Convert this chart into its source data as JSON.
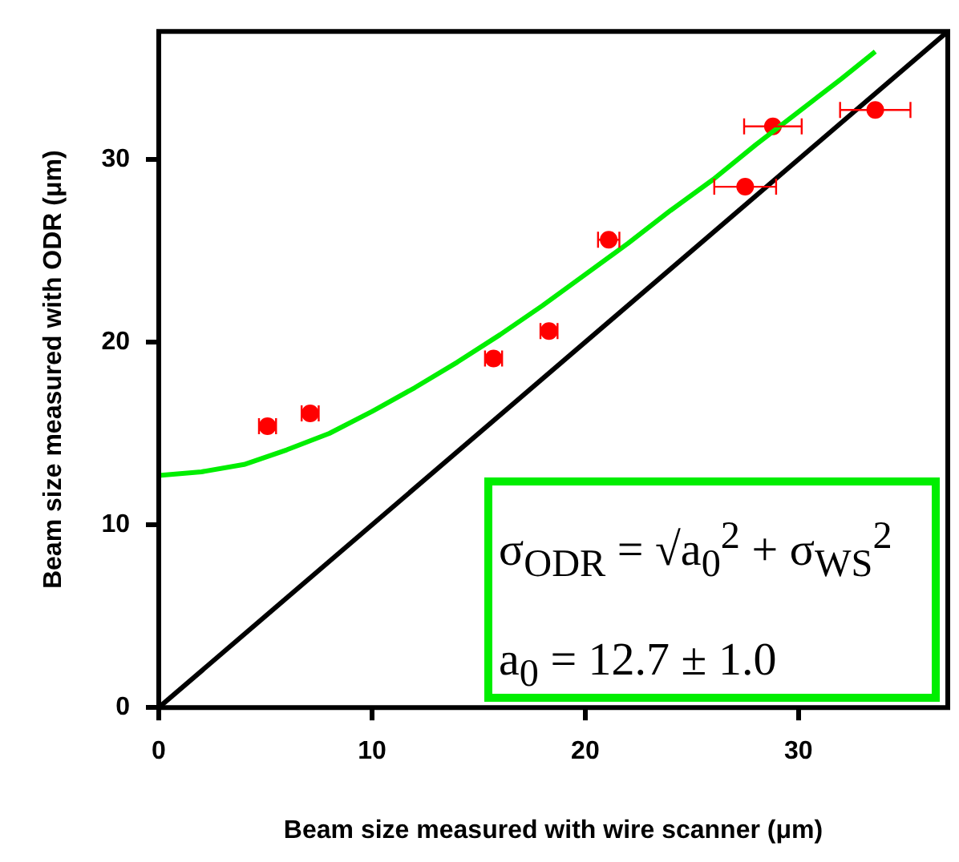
{
  "chart_data": {
    "type": "scatter",
    "xlabel": "Beam size measured with wire scanner (μm)",
    "ylabel": "Beam size measured with ODR (μm)",
    "xlim": [
      0,
      37
    ],
    "ylim": [
      0,
      37
    ],
    "xticks": [
      0,
      10,
      20,
      30
    ],
    "yticks": [
      0,
      10,
      20,
      30
    ],
    "grid": false,
    "legend": false,
    "marker": "circle",
    "series": [
      {
        "type": "line",
        "color": "#000000",
        "marker": "none",
        "x": [
          0,
          37
        ],
        "values": [
          0,
          37
        ]
      },
      {
        "type": "line",
        "color": "#00ee00",
        "marker": "none",
        "x": [
          0,
          2,
          4,
          6,
          8,
          10,
          12,
          14,
          16,
          18,
          20,
          22,
          24,
          26,
          28,
          30,
          32,
          33.6
        ],
        "values": [
          12.7,
          12.9,
          13.3,
          14.1,
          15.0,
          16.2,
          17.5,
          18.9,
          20.4,
          22.0,
          23.7,
          25.4,
          27.2,
          28.9,
          30.8,
          32.6,
          34.4,
          35.9
        ]
      },
      {
        "type": "scatter",
        "color": "#ff0000",
        "x": [
          5.1,
          7.1,
          15.7,
          18.3,
          21.1,
          27.5,
          28.8,
          33.6
        ],
        "values": [
          15.4,
          16.1,
          19.1,
          20.6,
          25.6,
          28.5,
          31.8,
          32.7
        ],
        "xerrors": [
          0.4,
          0.4,
          0.4,
          0.4,
          0.5,
          1.45,
          1.35,
          1.65
        ]
      }
    ],
    "annotations": [
      "σ$_{ODR}$ = √a$_{0}$$^{2}$ + σ$_{WS}$$^{2}$",
      "a$_{0}$ = 12.7 ± 1.0"
    ]
  }
}
